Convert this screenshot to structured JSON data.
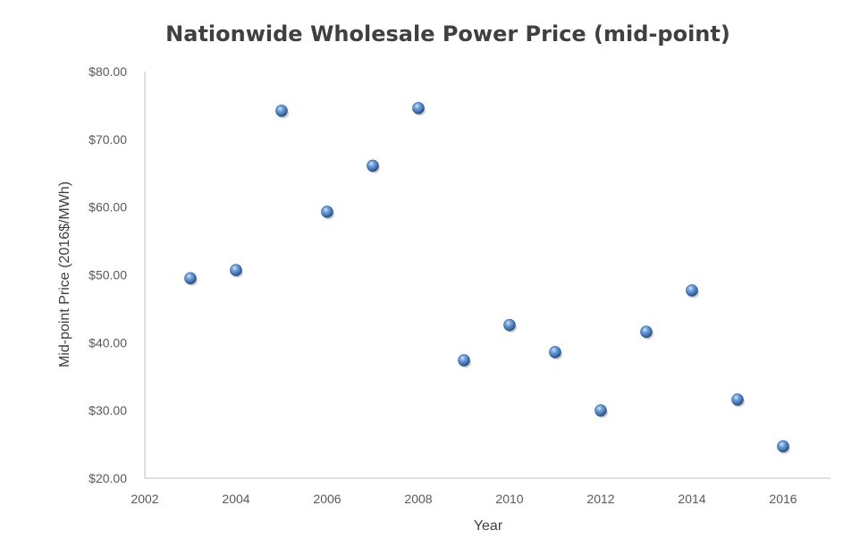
{
  "chart_data": {
    "type": "scatter",
    "title": "Nationwide Wholesale Power Price (mid-point)",
    "xlabel": "Year",
    "ylabel": "Mid-point Price (2016$/MWh)",
    "xlim": [
      2002,
      2017
    ],
    "ylim": [
      20,
      80
    ],
    "x_ticks": [
      "2002",
      "2004",
      "2006",
      "2008",
      "2010",
      "2012",
      "2014",
      "2016"
    ],
    "y_ticks": [
      "$20.00",
      "$30.00",
      "$40.00",
      "$50.00",
      "$60.00",
      "$70.00",
      "$80.00"
    ],
    "grid": false,
    "legend": "none",
    "marker_color": "#4f81bd",
    "points": [
      {
        "x": 2003,
        "y": 49.5
      },
      {
        "x": 2004,
        "y": 50.7
      },
      {
        "x": 2005,
        "y": 74.2
      },
      {
        "x": 2006,
        "y": 59.3
      },
      {
        "x": 2007,
        "y": 66.1
      },
      {
        "x": 2008,
        "y": 74.6
      },
      {
        "x": 2009,
        "y": 37.4
      },
      {
        "x": 2010,
        "y": 42.6
      },
      {
        "x": 2011,
        "y": 38.6
      },
      {
        "x": 2012,
        "y": 30.0
      },
      {
        "x": 2013,
        "y": 41.6
      },
      {
        "x": 2014,
        "y": 47.7
      },
      {
        "x": 2015,
        "y": 31.6
      },
      {
        "x": 2016,
        "y": 24.7
      }
    ]
  }
}
